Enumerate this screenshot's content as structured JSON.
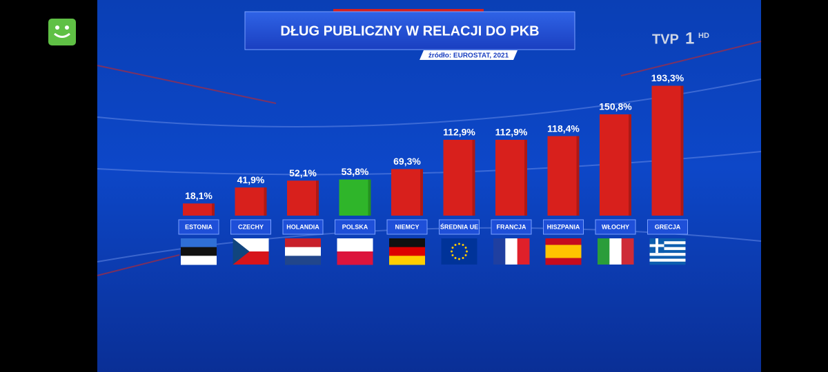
{
  "chart_data": {
    "type": "bar",
    "title": "DŁUG PUBLICZNY W RELACJI DO PKB",
    "subtitle": "źródło: EUROSTAT, 2021",
    "channel_logo": {
      "name": "TVP",
      "number": "1",
      "suffix": "HD"
    },
    "categories": [
      "ESTONIA",
      "CZECHY",
      "HOLANDIA",
      "POLSKA",
      "NIEMCY",
      "ŚREDNIA UE",
      "FRANCJA",
      "HISZPANIA",
      "WŁOCHY",
      "GRECJA"
    ],
    "values": [
      18.1,
      41.9,
      52.1,
      53.8,
      69.3,
      112.9,
      112.9,
      118.4,
      150.8,
      193.3
    ],
    "value_labels": [
      "18,1%",
      "41,9%",
      "52,1%",
      "53,8%",
      "69,3%",
      "112,9%",
      "112,9%",
      "118,4%",
      "150,8%",
      "193,3%"
    ],
    "colors": [
      "#d8201c",
      "#d8201c",
      "#d8201c",
      "#2fb52a",
      "#d8201c",
      "#d8201c",
      "#d8201c",
      "#d8201c",
      "#d8201c",
      "#d8201c"
    ]
  }
}
